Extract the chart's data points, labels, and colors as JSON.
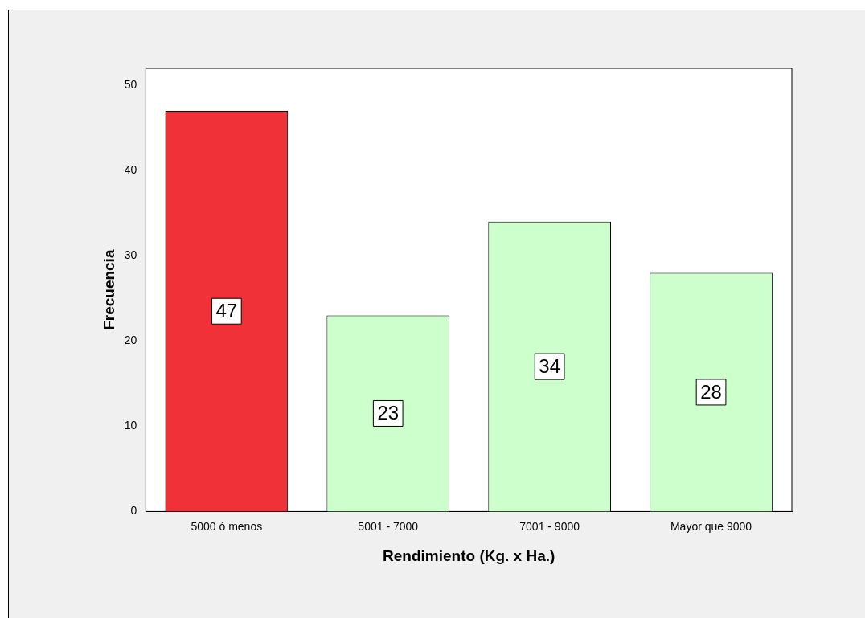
{
  "chart_data": {
    "type": "bar",
    "xlabel": "Rendimiento (Kg. x Ha.)",
    "ylabel": "Frecuencia",
    "categories": [
      "5000 ó menos",
      "5001 - 7000",
      "7001 - 9000",
      "Mayor que 9000"
    ],
    "values": [
      47,
      23,
      34,
      28
    ],
    "colors": [
      "#f03238",
      "#ccffcc",
      "#ccffcc",
      "#ccffcc"
    ],
    "ylim": [
      0,
      52
    ],
    "yticks": [
      0,
      10,
      20,
      30,
      40,
      50
    ],
    "grid": false,
    "legend": false,
    "data_labels": true
  }
}
